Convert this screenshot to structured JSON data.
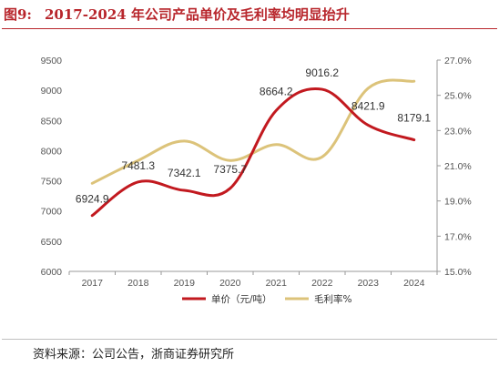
{
  "header": {
    "fig_no": "图9:",
    "title": "2017-2024 年公司产品单价及毛利率均明显抬升"
  },
  "source": "资料来源：公司公告，浙商证券研究所",
  "chart_data": {
    "type": "line",
    "x": [
      "2017",
      "2018",
      "2019",
      "2020",
      "2021",
      "2022",
      "2023",
      "2024"
    ],
    "series": [
      {
        "name": "单价（元/吨）",
        "axis": "left",
        "values": [
          6924.9,
          7481.3,
          7342.1,
          7375.7,
          8664.2,
          9016.2,
          8421.9,
          8179.1
        ],
        "labels": [
          "6924.9",
          "7481.3",
          "7342.1",
          "7375.7",
          "8664.2",
          "9016.2",
          "8421.9",
          "8179.1"
        ],
        "color": "#c2191f"
      },
      {
        "name": "毛利率%",
        "axis": "right",
        "values": [
          20.0,
          21.3,
          22.4,
          21.3,
          22.2,
          21.5,
          25.4,
          25.8
        ],
        "color": "#dcc37a"
      }
    ],
    "y_left": {
      "lim": [
        6000,
        9500
      ],
      "ticks": [
        "6000",
        "6500",
        "7000",
        "7500",
        "8000",
        "8500",
        "9000",
        "9500"
      ]
    },
    "y_right": {
      "lim": [
        15.0,
        27.0
      ],
      "ticks": [
        "15.0%",
        "17.0%",
        "19.0%",
        "21.0%",
        "23.0%",
        "25.0%",
        "27.0%"
      ]
    },
    "smooth": true,
    "grid": false,
    "legend": "bottom"
  }
}
